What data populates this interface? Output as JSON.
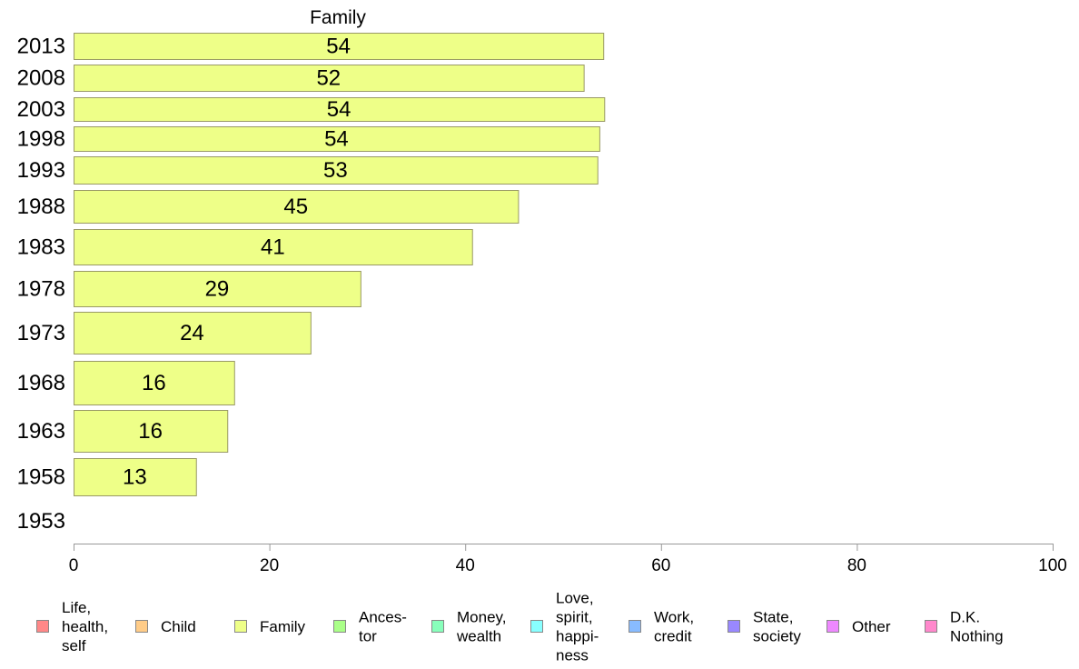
{
  "chart_data": {
    "type": "bar",
    "orientation": "horizontal",
    "title": "Family",
    "categories": [
      "2013",
      "2008",
      "2003",
      "1998",
      "1993",
      "1988",
      "1983",
      "1978",
      "1973",
      "1968",
      "1963",
      "1958",
      "1953"
    ],
    "values": [
      54,
      52,
      54,
      54,
      53,
      45,
      41,
      29,
      24,
      16,
      16,
      13,
      null
    ],
    "value_labels": [
      "54",
      "52",
      "54",
      "54",
      "53",
      "45",
      "41",
      "29",
      "24",
      "16",
      "16",
      "13",
      ""
    ],
    "bar_lengths": [
      54.1,
      52.1,
      54.2,
      53.7,
      53.5,
      45.4,
      40.7,
      29.3,
      24.2,
      16.4,
      15.7,
      12.5,
      null
    ],
    "xlim": [
      0,
      100
    ],
    "xticks": [
      "0",
      "20",
      "40",
      "60",
      "80",
      "100"
    ],
    "bar_color": "#eeff88",
    "bar_stroke": "#999966",
    "grid": false,
    "legend_position": "bottom",
    "legend": [
      {
        "name": "Life,\nhealth,\nself",
        "color": "#ff8888"
      },
      {
        "name": "Child",
        "color": "#ffcc88"
      },
      {
        "name": "Family",
        "color": "#eeff88"
      },
      {
        "name": "Ances-\ntor",
        "color": "#aaff88"
      },
      {
        "name": "Money,\nwealth",
        "color": "#88ffbb"
      },
      {
        "name": "Love,\nspirit,\nhappi-\nness",
        "color": "#88ffff"
      },
      {
        "name": "Work,\ncredit",
        "color": "#88bbff"
      },
      {
        "name": "State,\nsociety",
        "color": "#9988ff"
      },
      {
        "name": "Other",
        "color": "#ee88ff"
      },
      {
        "name": "D.K.\nNothing",
        "color": "#ff88cc"
      }
    ]
  }
}
